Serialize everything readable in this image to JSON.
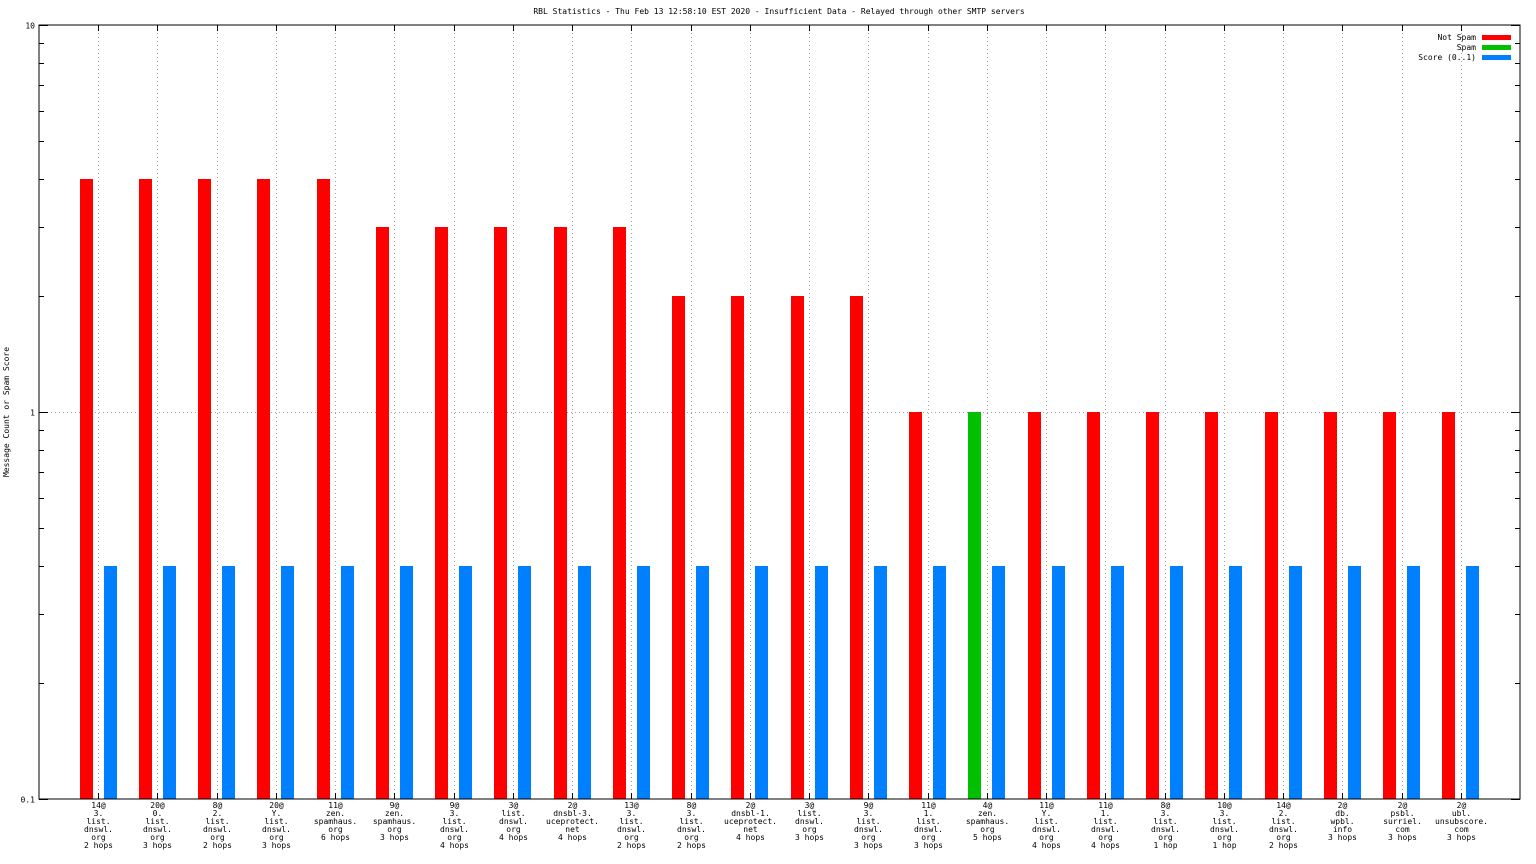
{
  "chart_data": {
    "type": "bar",
    "title": "RBL Statistics - Thu Feb 13 12:58:10 EST 2020 - Insufficient Data - Relayed through other SMTP servers",
    "ylabel": "Message Count or Spam Score",
    "xlabel": "",
    "yscale": "log",
    "ylim": [
      0.1,
      10
    ],
    "yticks": [
      "10",
      "1",
      "0.1"
    ],
    "grid": true,
    "legend_position": "top-right",
    "colors": {
      "not_spam": "#ff0000",
      "spam": "#00c000",
      "score": "#0080ff"
    },
    "categories": [
      [
        "14@",
        "3.",
        "list.",
        "dnswl.",
        "org",
        "2 hops"
      ],
      [
        "20@",
        "0.",
        "list.",
        "dnswl.",
        "org",
        "3 hops"
      ],
      [
        "8@",
        "2.",
        "list.",
        "dnswl.",
        "org",
        "2 hops"
      ],
      [
        "20@",
        "Y.",
        "list.",
        "dnswl.",
        "org",
        "3 hops"
      ],
      [
        "11@",
        "zen.",
        "spamhaus.",
        "org",
        "6 hops"
      ],
      [
        "9@",
        "zen.",
        "spamhaus.",
        "org",
        "3 hops"
      ],
      [
        "9@",
        "3.",
        "list.",
        "dnswl.",
        "org",
        "4 hops"
      ],
      [
        "3@",
        "list.",
        "dnswl.",
        "org",
        "4 hops"
      ],
      [
        "2@",
        "dnsbl-3.",
        "uceprotect.",
        "net",
        "4 hops"
      ],
      [
        "13@",
        "3.",
        "list.",
        "dnswl.",
        "org",
        "2 hops"
      ],
      [
        "8@",
        "3.",
        "list.",
        "dnswl.",
        "org",
        "2 hops"
      ],
      [
        "2@",
        "dnsbl-1.",
        "uceprotect.",
        "net",
        "4 hops"
      ],
      [
        "3@",
        "list.",
        "dnswl.",
        "org",
        "3 hops"
      ],
      [
        "9@",
        "3.",
        "list.",
        "dnswl.",
        "org",
        "3 hops"
      ],
      [
        "11@",
        "1.",
        "list.",
        "dnswl.",
        "org",
        "3 hops"
      ],
      [
        "4@",
        "zen.",
        "spamhaus.",
        "org",
        "5 hops"
      ],
      [
        "11@",
        "Y.",
        "list.",
        "dnswl.",
        "org",
        "4 hops"
      ],
      [
        "11@",
        "1.",
        "list.",
        "dnswl.",
        "org",
        "4 hops"
      ],
      [
        "8@",
        "3.",
        "list.",
        "dnswl.",
        "org",
        "1 hop"
      ],
      [
        "10@",
        "3.",
        "list.",
        "dnswl.",
        "org",
        "1 hop"
      ],
      [
        "14@",
        "2.",
        "list.",
        "dnswl.",
        "org",
        "2 hops"
      ],
      [
        "2@",
        "db.",
        "wpbl.",
        "info",
        "3 hops"
      ],
      [
        "2@",
        "psbl.",
        "surriel.",
        "com",
        "3 hops"
      ],
      [
        "2@",
        "ubl.",
        "unsubscore.",
        "com",
        "3 hops"
      ]
    ],
    "series": [
      {
        "name": "Not Spam",
        "values": [
          4,
          4,
          4,
          4,
          4,
          3,
          3,
          3,
          3,
          3,
          2,
          2,
          2,
          2,
          1,
          0,
          1,
          1,
          1,
          1,
          1,
          1,
          1,
          1
        ]
      },
      {
        "name": "Spam",
        "values": [
          0,
          0,
          0,
          0,
          0,
          0,
          0,
          0,
          0,
          0,
          0,
          0,
          0,
          0,
          0,
          1,
          0,
          0,
          0,
          0,
          0,
          0,
          0,
          0
        ]
      },
      {
        "name": "Score (0..1)",
        "values": [
          0.4,
          0.4,
          0.4,
          0.4,
          0.4,
          0.4,
          0.4,
          0.4,
          0.4,
          0.4,
          0.4,
          0.4,
          0.4,
          0.4,
          0.4,
          0.4,
          0.4,
          0.4,
          0.4,
          0.4,
          0.4,
          0.4,
          0.4,
          0.4
        ]
      }
    ]
  }
}
